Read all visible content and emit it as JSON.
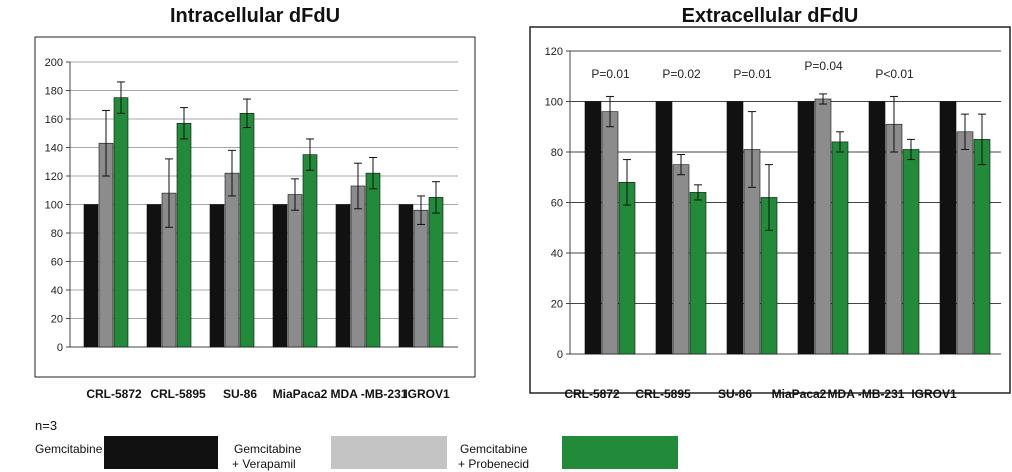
{
  "chart_data": [
    {
      "type": "bar",
      "title": "Intracellular dFdU",
      "categories": [
        "CRL-5872",
        "CRL-5895",
        "SU-86",
        "MiaPaca2",
        "MDA -MB-231",
        "IGROV1"
      ],
      "ylim": [
        0,
        200
      ],
      "yticks": [
        0,
        20,
        40,
        60,
        80,
        100,
        120,
        140,
        160,
        180,
        200
      ],
      "grid": true,
      "series": [
        {
          "name": "Gemcitabine",
          "color": "#111111",
          "values": [
            100,
            100,
            100,
            100,
            100,
            100
          ],
          "errors": [
            0,
            0,
            0,
            0,
            0,
            0
          ]
        },
        {
          "name": "Gemcitabine + Verapamil",
          "color": "#8c8c8c",
          "values": [
            143,
            108,
            122,
            107,
            113,
            96
          ],
          "errors": [
            23,
            24,
            16,
            11,
            16,
            10
          ]
        },
        {
          "name": "Gemcitabine + Probenecid",
          "color": "#228b3a",
          "values": [
            175,
            157,
            164,
            135,
            122,
            105
          ],
          "errors": [
            11,
            11,
            10,
            11,
            11,
            11
          ]
        }
      ],
      "annotations": []
    },
    {
      "type": "bar",
      "title": "Extracellular dFdU",
      "categories": [
        "CRL-5872",
        "CRL-5895",
        "SU-86",
        "MiaPaca2",
        "MDA -MB-231",
        "IGROV1"
      ],
      "ylim": [
        0,
        120
      ],
      "yticks": [
        0,
        20,
        40,
        60,
        80,
        100,
        120
      ],
      "grid": true,
      "series": [
        {
          "name": "Gemcitabine",
          "color": "#111111",
          "values": [
            100,
            100,
            100,
            100,
            100,
            100
          ],
          "errors": [
            0,
            0,
            0,
            0,
            0,
            0
          ]
        },
        {
          "name": "Gemcitabine + Verapamil",
          "color": "#8c8c8c",
          "values": [
            96,
            75,
            81,
            101,
            91,
            88
          ],
          "errors": [
            6,
            4,
            15,
            2,
            11,
            7
          ]
        },
        {
          "name": "Gemcitabine + Probenecid",
          "color": "#228b3a",
          "values": [
            68,
            64,
            62,
            84,
            81,
            85
          ],
          "errors": [
            9,
            3,
            13,
            4,
            4,
            10
          ]
        }
      ],
      "annotations": [
        "P=0.01",
        "P=0.02",
        "P=0.01",
        "P=0.04",
        "P<0.01",
        ""
      ]
    }
  ],
  "n_label": "n=3",
  "legend": [
    {
      "line1": "Gemcitabine",
      "line2": "",
      "color": "#111111"
    },
    {
      "line1": "Gemcitabine",
      "line2": "+ Verapamil",
      "color": "#c4c4c4"
    },
    {
      "line1": "Gemcitabine",
      "line2": "+ Probenecid",
      "color": "#228b3a"
    }
  ]
}
